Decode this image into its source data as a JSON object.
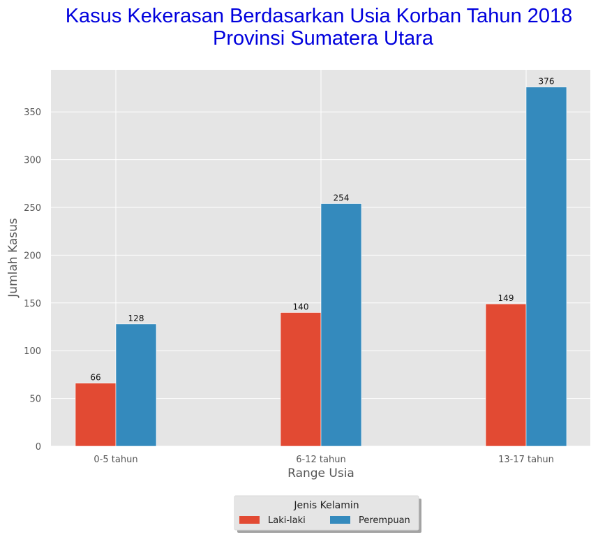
{
  "chart_data": {
    "type": "bar",
    "title_line1": "Kasus Kekerasan Berdasarkan Usia Korban Tahun 2018",
    "title_line2": "Provinsi Sumatera Utara",
    "xlabel": "Range Usia",
    "ylabel": "Jumlah Kasus",
    "categories": [
      "0-5 tahun",
      "6-12 tahun",
      "13-17 tahun"
    ],
    "series": [
      {
        "name": "Laki-laki",
        "values": [
          66,
          140,
          149
        ],
        "color": "#E24A33"
      },
      {
        "name": "Perempuan",
        "values": [
          128,
          254,
          376
        ],
        "color": "#348ABD"
      }
    ],
    "ylim": [
      0,
      394
    ],
    "yticks": [
      0,
      50,
      100,
      150,
      200,
      250,
      300,
      350
    ],
    "grid": true,
    "legend": {
      "title": "Jenis Kelamin",
      "placement": "bottom-center"
    },
    "colors": {
      "plot_background": "#E5E5E5",
      "grid": "#FFFFFF",
      "title": "#0000DD"
    }
  }
}
